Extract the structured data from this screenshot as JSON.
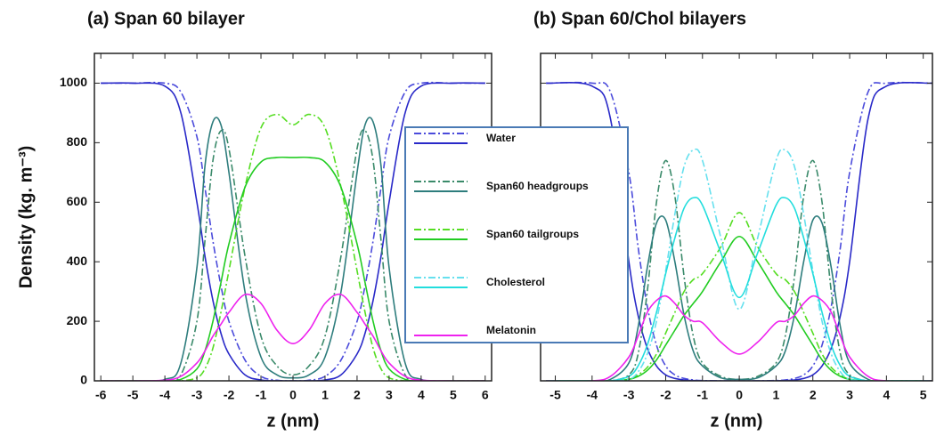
{
  "chart_data": [
    {
      "type": "line",
      "title": "(a)  Span 60 bilayer",
      "x_label": "z (nm)",
      "y_label": "Density (kg. m⁻³)",
      "xlim": [
        -6.2,
        6.2
      ],
      "ylim": [
        0,
        1100
      ],
      "xticks": [
        -6,
        -5,
        -4,
        -3,
        -2,
        -1,
        0,
        1,
        2,
        3,
        4,
        5,
        6
      ],
      "yticks": [
        0,
        200,
        400,
        600,
        800,
        1000
      ],
      "ytick_labels": true,
      "x": [
        -6,
        -5,
        -4,
        -3.5,
        -3,
        -2.75,
        -2.5,
        -2.25,
        -2,
        -1.5,
        -1,
        -0.5,
        0,
        0.5,
        1,
        1.5,
        2,
        2.25,
        2.5,
        2.75,
        3,
        3.5,
        4,
        5,
        6
      ],
      "series": [
        {
          "name": "Water",
          "color": "#2929c8",
          "dash_color": "#4b4bdb",
          "values": [
            1000,
            1000,
            990,
            900,
            600,
            420,
            270,
            160,
            90,
            20,
            3,
            0,
            0,
            0,
            3,
            20,
            90,
            160,
            270,
            420,
            600,
            900,
            990,
            1000,
            1000
          ],
          "dash_values": [
            1000,
            1000,
            1000,
            970,
            820,
            650,
            470,
            320,
            200,
            70,
            15,
            2,
            0,
            2,
            15,
            70,
            200,
            320,
            470,
            650,
            820,
            970,
            1000,
            1000,
            1000
          ]
        },
        {
          "name": "Span60 headgroups",
          "color": "#2e7d7d",
          "dash_color": "#3a8a6a",
          "values": [
            0,
            0,
            5,
            60,
            380,
            720,
            870,
            860,
            700,
            300,
            80,
            20,
            10,
            20,
            80,
            300,
            700,
            860,
            870,
            720,
            380,
            60,
            5,
            0,
            0
          ],
          "dash_values": [
            0,
            0,
            0,
            20,
            200,
            470,
            740,
            840,
            780,
            420,
            150,
            50,
            20,
            50,
            150,
            420,
            780,
            840,
            740,
            470,
            200,
            20,
            0,
            0,
            0
          ]
        },
        {
          "name": "Span60 tailgroups",
          "color": "#22cc22",
          "dash_color": "#55dd22",
          "values": [
            0,
            0,
            0,
            5,
            40,
            100,
            200,
            330,
            460,
            650,
            735,
            750,
            750,
            750,
            735,
            650,
            460,
            330,
            200,
            100,
            40,
            5,
            0,
            0,
            0
          ],
          "dash_values": [
            0,
            0,
            0,
            0,
            10,
            40,
            110,
            230,
            370,
            650,
            850,
            895,
            860,
            895,
            850,
            650,
            370,
            230,
            110,
            40,
            10,
            0,
            0,
            0,
            0
          ]
        },
        {
          "name": "Melatonin",
          "color": "#ee22ee",
          "values": [
            0,
            0,
            2,
            15,
            60,
            100,
            150,
            190,
            230,
            290,
            260,
            170,
            125,
            170,
            260,
            290,
            230,
            190,
            150,
            100,
            60,
            15,
            2,
            0,
            0
          ]
        }
      ]
    },
    {
      "type": "line",
      "title": "(b)  Span 60/Chol bilayers",
      "x_label": "z (nm)",
      "xlim": [
        -5.4,
        5.25
      ],
      "ylim": [
        0,
        1100
      ],
      "xticks": [
        -5,
        -4,
        -3,
        -2,
        -1,
        0,
        1,
        2,
        3,
        4,
        5
      ],
      "yticks": [
        0,
        200,
        400,
        600,
        800,
        1000
      ],
      "ytick_labels": false,
      "x": [
        -5.25,
        -4,
        -3.5,
        -3,
        -2.75,
        -2.5,
        -2.25,
        -2,
        -1.75,
        -1.5,
        -1.25,
        -1,
        -0.5,
        0,
        0.5,
        1,
        1.25,
        1.5,
        1.75,
        2,
        2.25,
        2.5,
        2.75,
        3,
        3.5,
        4,
        5.25
      ],
      "series": [
        {
          "name": "Water",
          "color": "#2929c8",
          "dash_color": "#4b4bdb",
          "values": [
            1000,
            990,
            880,
            400,
            220,
            110,
            50,
            20,
            8,
            3,
            1,
            0,
            0,
            0,
            0,
            0,
            1,
            3,
            8,
            20,
            50,
            110,
            220,
            400,
            880,
            990,
            1000
          ],
          "dash_values": [
            1000,
            1000,
            970,
            700,
            450,
            250,
            120,
            50,
            20,
            8,
            3,
            1,
            0,
            0,
            0,
            1,
            3,
            8,
            20,
            50,
            120,
            250,
            450,
            700,
            970,
            1000,
            1000
          ]
        },
        {
          "name": "Span60 headgroups",
          "color": "#2e7d7d",
          "dash_color": "#3a8a6a",
          "values": [
            0,
            0,
            5,
            60,
            180,
            380,
            530,
            540,
            400,
            220,
            100,
            50,
            10,
            5,
            10,
            50,
            100,
            220,
            400,
            540,
            530,
            380,
            180,
            60,
            5,
            0,
            0
          ],
          "dash_values": [
            0,
            0,
            0,
            20,
            90,
            300,
            600,
            740,
            620,
            350,
            150,
            60,
            15,
            5,
            15,
            60,
            150,
            350,
            620,
            740,
            600,
            300,
            90,
            20,
            0,
            0,
            0
          ]
        },
        {
          "name": "Span60 tailgroups",
          "color": "#22cc22",
          "dash_color": "#55dd22",
          "values": [
            0,
            0,
            0,
            5,
            15,
            35,
            70,
            120,
            170,
            220,
            260,
            300,
            400,
            485,
            400,
            300,
            260,
            220,
            170,
            120,
            70,
            35,
            15,
            5,
            0,
            0,
            0
          ],
          "dash_values": [
            0,
            0,
            0,
            5,
            20,
            45,
            90,
            160,
            230,
            300,
            340,
            360,
            450,
            565,
            450,
            360,
            340,
            300,
            230,
            160,
            90,
            45,
            20,
            5,
            0,
            0,
            0
          ]
        },
        {
          "name": "Cholesterol",
          "color": "#22dddd",
          "dash_color": "#66e0ee",
          "values": [
            0,
            0,
            0,
            15,
            50,
            120,
            230,
            360,
            480,
            580,
            615,
            590,
            430,
            280,
            430,
            590,
            615,
            580,
            480,
            360,
            230,
            120,
            50,
            15,
            0,
            0,
            0
          ],
          "dash_values": [
            0,
            0,
            0,
            5,
            30,
            90,
            200,
            370,
            560,
            720,
            775,
            740,
            480,
            240,
            480,
            740,
            775,
            720,
            560,
            370,
            200,
            90,
            30,
            5,
            0,
            0,
            0
          ]
        },
        {
          "name": "Melatonin",
          "color": "#ee22ee",
          "values": [
            0,
            0,
            15,
            80,
            150,
            230,
            270,
            285,
            260,
            220,
            200,
            195,
            130,
            90,
            130,
            195,
            200,
            220,
            260,
            285,
            270,
            230,
            150,
            80,
            15,
            0,
            0
          ]
        }
      ]
    }
  ]
}
